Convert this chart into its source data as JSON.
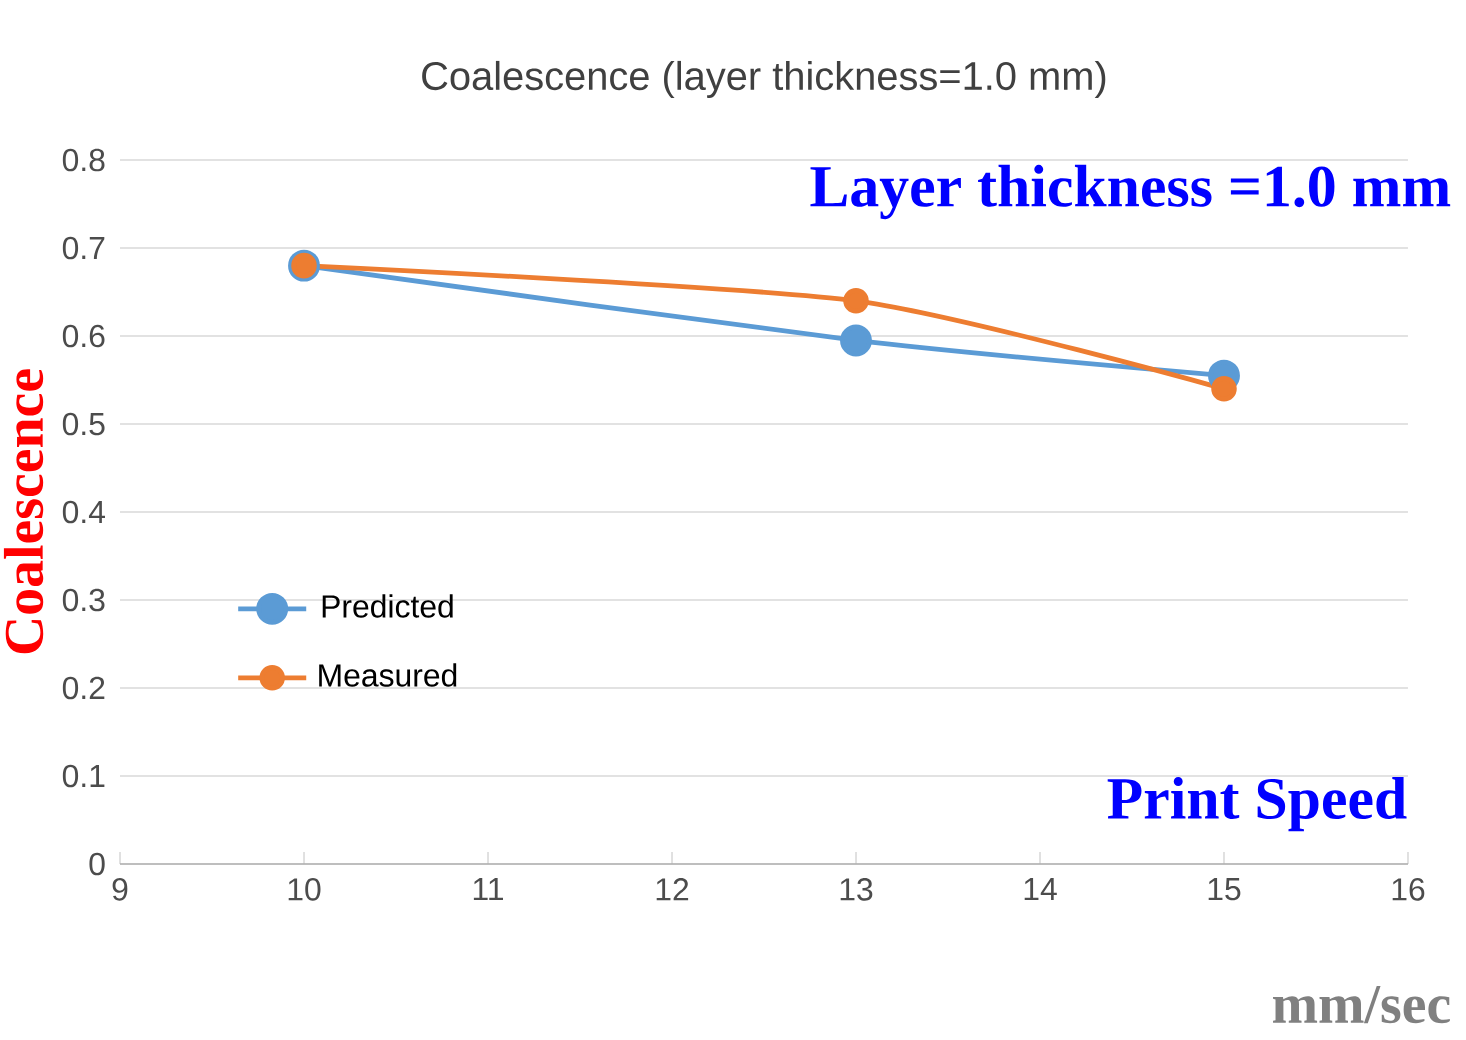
{
  "chart_data": {
    "type": "line",
    "title": "Coalescence (layer thickness=1.0 mm)",
    "xlabel": "mm/sec",
    "ylabel": "Coalescence",
    "annotations": [
      "Layer thickness =1.0 mm",
      "Print Speed"
    ],
    "x": [
      10,
      13,
      15
    ],
    "series": [
      {
        "name": "Predicted",
        "color": "#5b9bd5",
        "values": [
          0.68,
          0.595,
          0.555
        ]
      },
      {
        "name": "Measured",
        "color": "#ed7d31",
        "values": [
          0.68,
          0.64,
          0.54
        ]
      }
    ],
    "xlim": [
      9,
      16
    ],
    "xticks": [
      9,
      10,
      11,
      12,
      13,
      14,
      15,
      16
    ],
    "ylim": [
      0,
      0.8
    ],
    "yticks": [
      0,
      0.1,
      0.2,
      0.3,
      0.4,
      0.5,
      0.6,
      0.7,
      0.8
    ],
    "grid": "y",
    "legend": "left",
    "marker": "circle",
    "line_style": "solid"
  }
}
